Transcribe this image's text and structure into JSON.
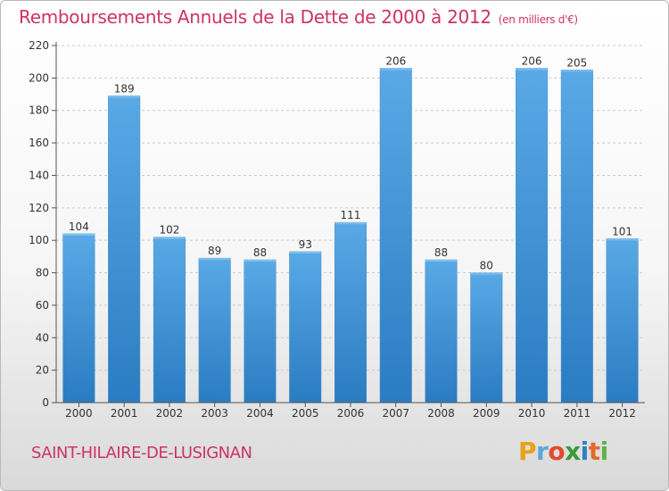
{
  "title": "Remboursements Annuels de la Dette de 2000 à 2012",
  "title_unit": "(en milliers d'€)",
  "commune": "SAINT-HILAIRE-DE-LUSIGNAN",
  "logo": {
    "letters": [
      "P",
      "r",
      "o",
      "x",
      "i",
      "t",
      "i"
    ]
  },
  "colors": {
    "title": "#cc3366",
    "bar_light": "#5aa9e6",
    "bar_dark": "#2a7cc2",
    "axis": "#555555",
    "grid": "#cccccc"
  },
  "chart_data": {
    "type": "bar",
    "title": "Remboursements Annuels de la Dette de 2000 à 2012",
    "categories": [
      "2000",
      "2001",
      "2002",
      "2003",
      "2004",
      "2005",
      "2006",
      "2007",
      "2008",
      "2009",
      "2010",
      "2011",
      "2012"
    ],
    "values": [
      104,
      189,
      102,
      89,
      88,
      93,
      111,
      206,
      88,
      80,
      206,
      205,
      101
    ],
    "yticks": [
      0,
      20,
      40,
      60,
      80,
      100,
      120,
      140,
      160,
      180,
      200,
      220
    ],
    "ylim": [
      0,
      220
    ],
    "xlabel": "",
    "ylabel": "",
    "grid": true,
    "legend": "none"
  }
}
